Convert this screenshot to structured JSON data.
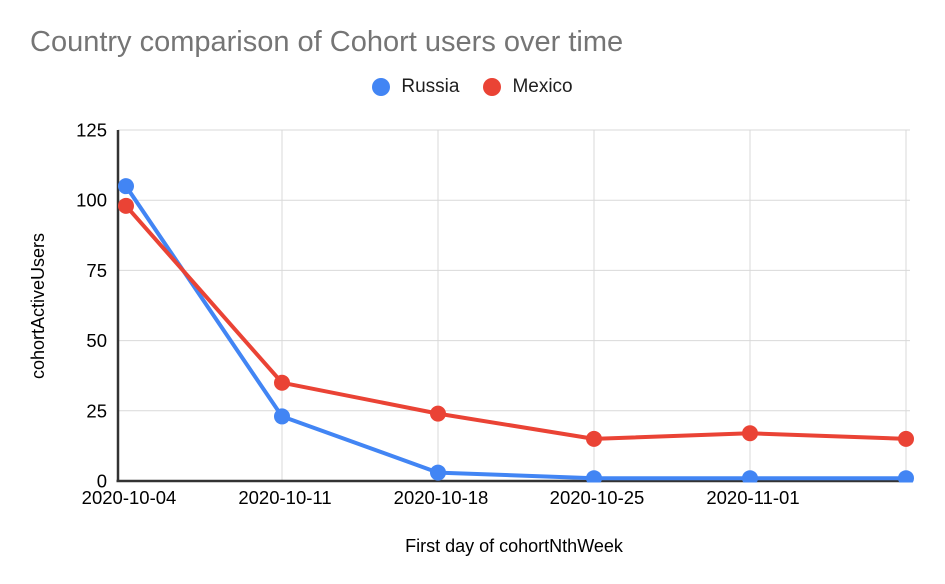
{
  "style": {
    "background": "#ffffff",
    "title-color": "#757575",
    "text-color": "#000000",
    "legend-text-color": "#1f1f1f",
    "gridline-color": "#d9d9d9",
    "axis-color": "#333333"
  },
  "chart_data": {
    "type": "line",
    "title": "Country comparison of Cohort users over time",
    "xlabel": "First day of cohortNthWeek",
    "ylabel": "cohortActiveUsers",
    "categories": [
      "2020-10-04",
      "2020-10-11",
      "2020-10-18",
      "2020-10-25",
      "2020-11-01",
      ""
    ],
    "x_tick_labels": [
      "2020-10-04",
      "2020-10-11",
      "2020-10-18",
      "2020-10-25",
      "2020-11-01"
    ],
    "series": [
      {
        "name": "Russia",
        "color": "#4285F4",
        "values": [
          105,
          23,
          3,
          1,
          1,
          1
        ]
      },
      {
        "name": "Mexico",
        "color": "#EA4335",
        "values": [
          98,
          35,
          24,
          15,
          17,
          15
        ]
      }
    ],
    "ylim": [
      0,
      125
    ],
    "y_ticks": [
      0,
      25,
      50,
      75,
      100,
      125
    ],
    "grid": true,
    "legend_position": "top-center",
    "marker_style": "filled-circle"
  }
}
